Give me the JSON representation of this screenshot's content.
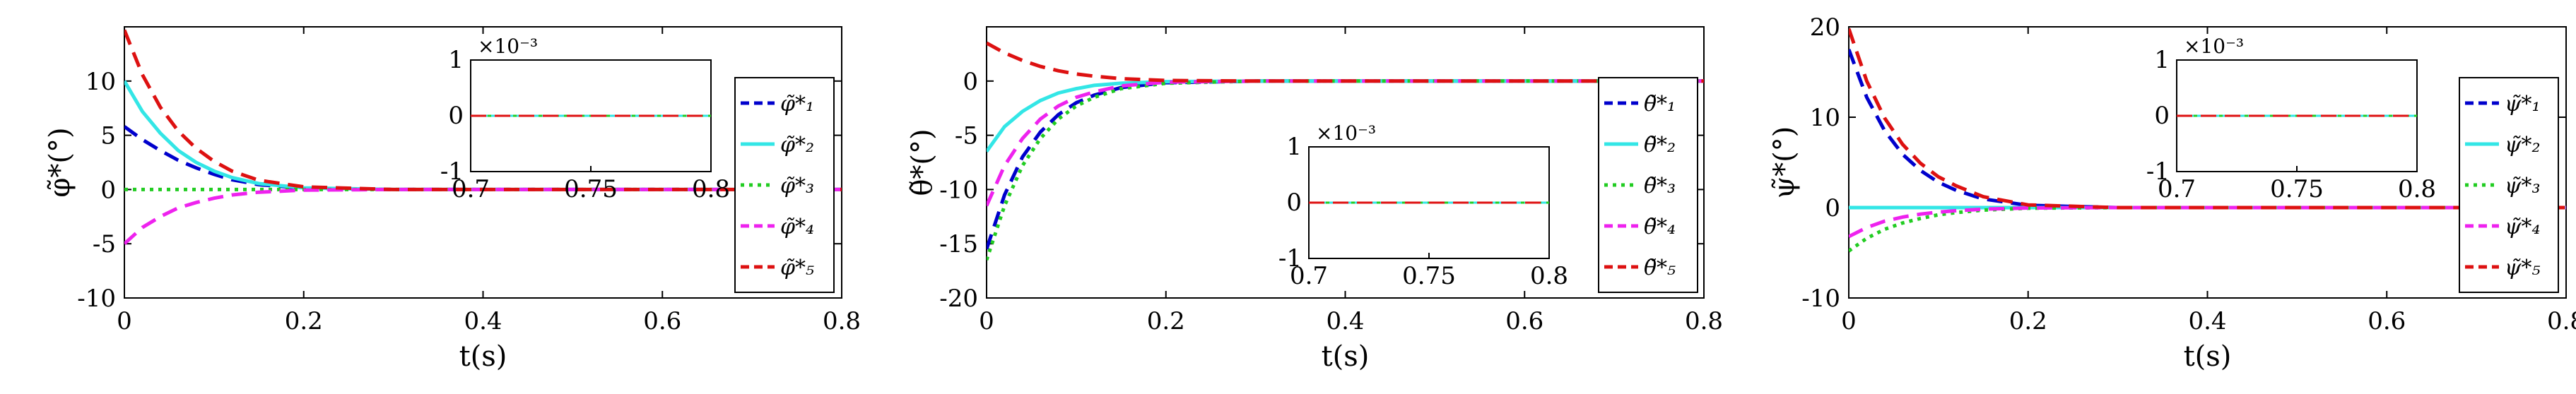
{
  "chart_data": [
    {
      "type": "line",
      "ylabel": "φ̃*(°)",
      "xlabel": "t(s)",
      "xlim": [
        0,
        0.8
      ],
      "ylim": [
        -10,
        15
      ],
      "xticks": [
        "0",
        "0.2",
        "0.4",
        "0.6",
        "0.8"
      ],
      "yticks": [
        "-10",
        "-5",
        "0",
        "5",
        "10"
      ],
      "legend": [
        "φ̃*₁",
        "φ̃*₂",
        "φ̃*₃",
        "φ̃*₄",
        "φ̃*₅"
      ],
      "legend_placement": "right",
      "series": [
        {
          "name": "φ̃*₁",
          "color": "#0000cc",
          "dash": "dash",
          "x": [
            0,
            0.02,
            0.04,
            0.06,
            0.08,
            0.1,
            0.12,
            0.15,
            0.2,
            0.3,
            0.8
          ],
          "y": [
            5.8,
            4.6,
            3.6,
            2.7,
            2.0,
            1.4,
            0.9,
            0.45,
            0.12,
            0,
            0
          ]
        },
        {
          "name": "φ̃*₂",
          "color": "#33e6e6",
          "dash": "solid",
          "x": [
            0,
            0.02,
            0.04,
            0.06,
            0.08,
            0.1,
            0.12,
            0.15,
            0.2,
            0.3,
            0.8
          ],
          "y": [
            10,
            7.2,
            5.2,
            3.6,
            2.5,
            1.7,
            1.1,
            0.55,
            0.15,
            0,
            0
          ]
        },
        {
          "name": "φ̃*₃",
          "color": "#22cc22",
          "dash": "dot",
          "x": [
            0,
            0.1,
            0.2,
            0.8
          ],
          "y": [
            0,
            0,
            0,
            0
          ]
        },
        {
          "name": "φ̃*₄",
          "color": "#ee22ee",
          "dash": "dash",
          "x": [
            0,
            0.02,
            0.04,
            0.06,
            0.08,
            0.1,
            0.12,
            0.15,
            0.2,
            0.3,
            0.8
          ],
          "y": [
            -5,
            -3.5,
            -2.5,
            -1.7,
            -1.2,
            -0.8,
            -0.5,
            -0.25,
            -0.05,
            0,
            0
          ]
        },
        {
          "name": "φ̃*₅",
          "color": "#dd1111",
          "dash": "dash",
          "x": [
            0,
            0.02,
            0.04,
            0.06,
            0.08,
            0.1,
            0.12,
            0.15,
            0.2,
            0.3,
            0.8
          ],
          "y": [
            14.7,
            10.6,
            7.6,
            5.4,
            3.8,
            2.6,
            1.7,
            0.85,
            0.25,
            0,
            0
          ]
        }
      ],
      "inset": {
        "exponent_label": "×10⁻³",
        "xlim": [
          0.7,
          0.8
        ],
        "ylim": [
          -1,
          1
        ],
        "xticks": [
          "0.7",
          "0.75",
          "0.8"
        ],
        "yticks": [
          "-1",
          "0",
          "1"
        ]
      }
    },
    {
      "type": "line",
      "ylabel": "θ̃*(°)",
      "xlabel": "t(s)",
      "xlim": [
        0,
        0.8
      ],
      "ylim": [
        -20,
        5
      ],
      "xticks": [
        "0",
        "0.2",
        "0.4",
        "0.6",
        "0.8"
      ],
      "yticks": [
        "-20",
        "-15",
        "-10",
        "-5",
        "0"
      ],
      "legend": [
        "θ̃*₁",
        "θ̃*₂",
        "θ̃*₃",
        "θ̃*₄",
        "θ̃*₅"
      ],
      "legend_placement": "right",
      "series": [
        {
          "name": "θ̃*₁",
          "color": "#0000cc",
          "dash": "dash",
          "x": [
            0,
            0.02,
            0.04,
            0.06,
            0.08,
            0.1,
            0.12,
            0.15,
            0.2,
            0.3,
            0.8
          ],
          "y": [
            -15.5,
            -10.5,
            -7,
            -4.7,
            -3.1,
            -2.0,
            -1.3,
            -0.6,
            -0.15,
            0,
            0
          ]
        },
        {
          "name": "θ̃*₂",
          "color": "#33e6e6",
          "dash": "solid",
          "x": [
            0,
            0.02,
            0.04,
            0.06,
            0.08,
            0.1,
            0.12,
            0.15,
            0.2,
            0.3,
            0.8
          ],
          "y": [
            -6.5,
            -4.2,
            -2.8,
            -1.8,
            -1.1,
            -0.7,
            -0.4,
            -0.2,
            -0.05,
            0,
            0
          ]
        },
        {
          "name": "θ̃*₃",
          "color": "#22cc22",
          "dash": "dot",
          "x": [
            0,
            0.02,
            0.04,
            0.06,
            0.08,
            0.1,
            0.12,
            0.15,
            0.2,
            0.3,
            0.8
          ],
          "y": [
            -16.5,
            -11.5,
            -7.8,
            -5.3,
            -3.5,
            -2.3,
            -1.5,
            -0.7,
            -0.2,
            0,
            0
          ]
        },
        {
          "name": "θ̃*₄",
          "color": "#ee22ee",
          "dash": "dash",
          "x": [
            0,
            0.02,
            0.04,
            0.06,
            0.08,
            0.1,
            0.12,
            0.15,
            0.2,
            0.3,
            0.8
          ],
          "y": [
            -11.5,
            -7.8,
            -5.3,
            -3.5,
            -2.3,
            -1.5,
            -1.0,
            -0.45,
            -0.1,
            0,
            0
          ]
        },
        {
          "name": "θ̃*₅",
          "color": "#dd1111",
          "dash": "dash",
          "x": [
            0,
            0.02,
            0.04,
            0.06,
            0.08,
            0.1,
            0.12,
            0.15,
            0.2,
            0.3,
            0.8
          ],
          "y": [
            3.5,
            2.6,
            1.9,
            1.35,
            0.95,
            0.65,
            0.45,
            0.22,
            0.05,
            0,
            0
          ]
        }
      ],
      "inset": {
        "exponent_label": "×10⁻³",
        "xlim": [
          0.7,
          0.8
        ],
        "ylim": [
          -1,
          1
        ],
        "xticks": [
          "0.7",
          "0.75",
          "0.8"
        ],
        "yticks": [
          "-1",
          "0",
          "1"
        ]
      }
    },
    {
      "type": "line",
      "ylabel": "ψ̃*(°)",
      "xlabel": "t(s)",
      "xlim": [
        0,
        0.8
      ],
      "ylim": [
        -10,
        20
      ],
      "xticks": [
        "0",
        "0.2",
        "0.4",
        "0.6",
        "0.8"
      ],
      "yticks": [
        "-10",
        "0",
        "10",
        "20"
      ],
      "legend": [
        "ψ̃*₁",
        "ψ̃*₂",
        "ψ̃*₃",
        "ψ̃*₄",
        "ψ̃*₅"
      ],
      "legend_placement": "right",
      "series": [
        {
          "name": "ψ̃*₁",
          "color": "#0000cc",
          "dash": "dash",
          "x": [
            0,
            0.02,
            0.04,
            0.06,
            0.08,
            0.1,
            0.12,
            0.15,
            0.2,
            0.3,
            0.8
          ],
          "y": [
            17.5,
            12.2,
            8.5,
            5.9,
            4.1,
            2.8,
            1.9,
            0.95,
            0.25,
            0,
            0
          ]
        },
        {
          "name": "ψ̃*₂",
          "color": "#33e6e6",
          "dash": "solid",
          "x": [
            0,
            0.05,
            0.1,
            0.2,
            0.8
          ],
          "y": [
            0,
            0,
            0,
            0,
            0
          ]
        },
        {
          "name": "ψ̃*₃",
          "color": "#22cc22",
          "dash": "dot",
          "x": [
            0,
            0.02,
            0.04,
            0.06,
            0.08,
            0.1,
            0.12,
            0.15,
            0.2,
            0.3,
            0.8
          ],
          "y": [
            -4.8,
            -3.4,
            -2.4,
            -1.7,
            -1.2,
            -0.8,
            -0.55,
            -0.28,
            -0.07,
            0,
            0
          ]
        },
        {
          "name": "ψ̃*₄",
          "color": "#ee22ee",
          "dash": "dash",
          "x": [
            0,
            0.02,
            0.04,
            0.06,
            0.08,
            0.1,
            0.12,
            0.15,
            0.2,
            0.3,
            0.8
          ],
          "y": [
            -3.2,
            -2.2,
            -1.5,
            -1.05,
            -0.72,
            -0.5,
            -0.34,
            -0.17,
            -0.04,
            0,
            0
          ]
        },
        {
          "name": "ψ̃*₅",
          "color": "#dd1111",
          "dash": "dash",
          "x": [
            0,
            0.02,
            0.04,
            0.06,
            0.08,
            0.1,
            0.12,
            0.15,
            0.2,
            0.3,
            0.8
          ],
          "y": [
            19.8,
            14.0,
            9.9,
            7.0,
            4.9,
            3.4,
            2.4,
            1.2,
            0.3,
            0,
            0
          ]
        }
      ],
      "inset": {
        "exponent_label": "×10⁻³",
        "xlim": [
          0.7,
          0.8
        ],
        "ylim": [
          -1,
          1
        ],
        "xticks": [
          "0.7",
          "0.75",
          "0.8"
        ],
        "yticks": [
          "-1",
          "0",
          "1"
        ]
      }
    }
  ]
}
